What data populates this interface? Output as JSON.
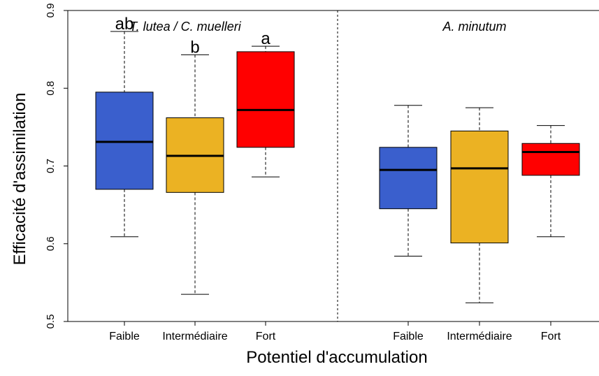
{
  "chart_data": {
    "type": "box",
    "xlabel": "Potentiel d'accumulation",
    "ylabel": "Efficacité d'assimilation",
    "ylim": [
      0.5,
      0.9
    ],
    "yticks": [
      "0.5",
      "0.6",
      "0.7",
      "0.8",
      "0.9"
    ],
    "colors": {
      "Faible": "#3a5fcd",
      "Intermédiaire": "#ebb223",
      "Fort": "#ff0000"
    },
    "panels": [
      {
        "title": "T. lutea / C. muelleri",
        "categories": [
          "Faible",
          "Intermédiaire",
          "Fort"
        ],
        "boxes": [
          {
            "category": "Faible",
            "min": 0.609,
            "q1": 0.67,
            "median": 0.731,
            "q3": 0.795,
            "max": 0.873,
            "letter": "ab"
          },
          {
            "category": "Intermédiaire",
            "min": 0.535,
            "q1": 0.666,
            "median": 0.713,
            "q3": 0.762,
            "max": 0.843,
            "letter": "b"
          },
          {
            "category": "Fort",
            "min": 0.686,
            "q1": 0.724,
            "median": 0.772,
            "q3": 0.847,
            "max": 0.854,
            "letter": "a"
          }
        ]
      },
      {
        "title": "A. minutum",
        "categories": [
          "Faible",
          "Intermédiaire",
          "Fort"
        ],
        "boxes": [
          {
            "category": "Faible",
            "min": 0.584,
            "q1": 0.645,
            "median": 0.695,
            "q3": 0.724,
            "max": 0.778,
            "letter": ""
          },
          {
            "category": "Intermédiaire",
            "min": 0.524,
            "q1": 0.601,
            "median": 0.697,
            "q3": 0.745,
            "max": 0.775,
            "letter": ""
          },
          {
            "category": "Fort",
            "min": 0.609,
            "q1": 0.688,
            "median": 0.718,
            "q3": 0.729,
            "max": 0.752,
            "letter": ""
          }
        ]
      }
    ]
  }
}
